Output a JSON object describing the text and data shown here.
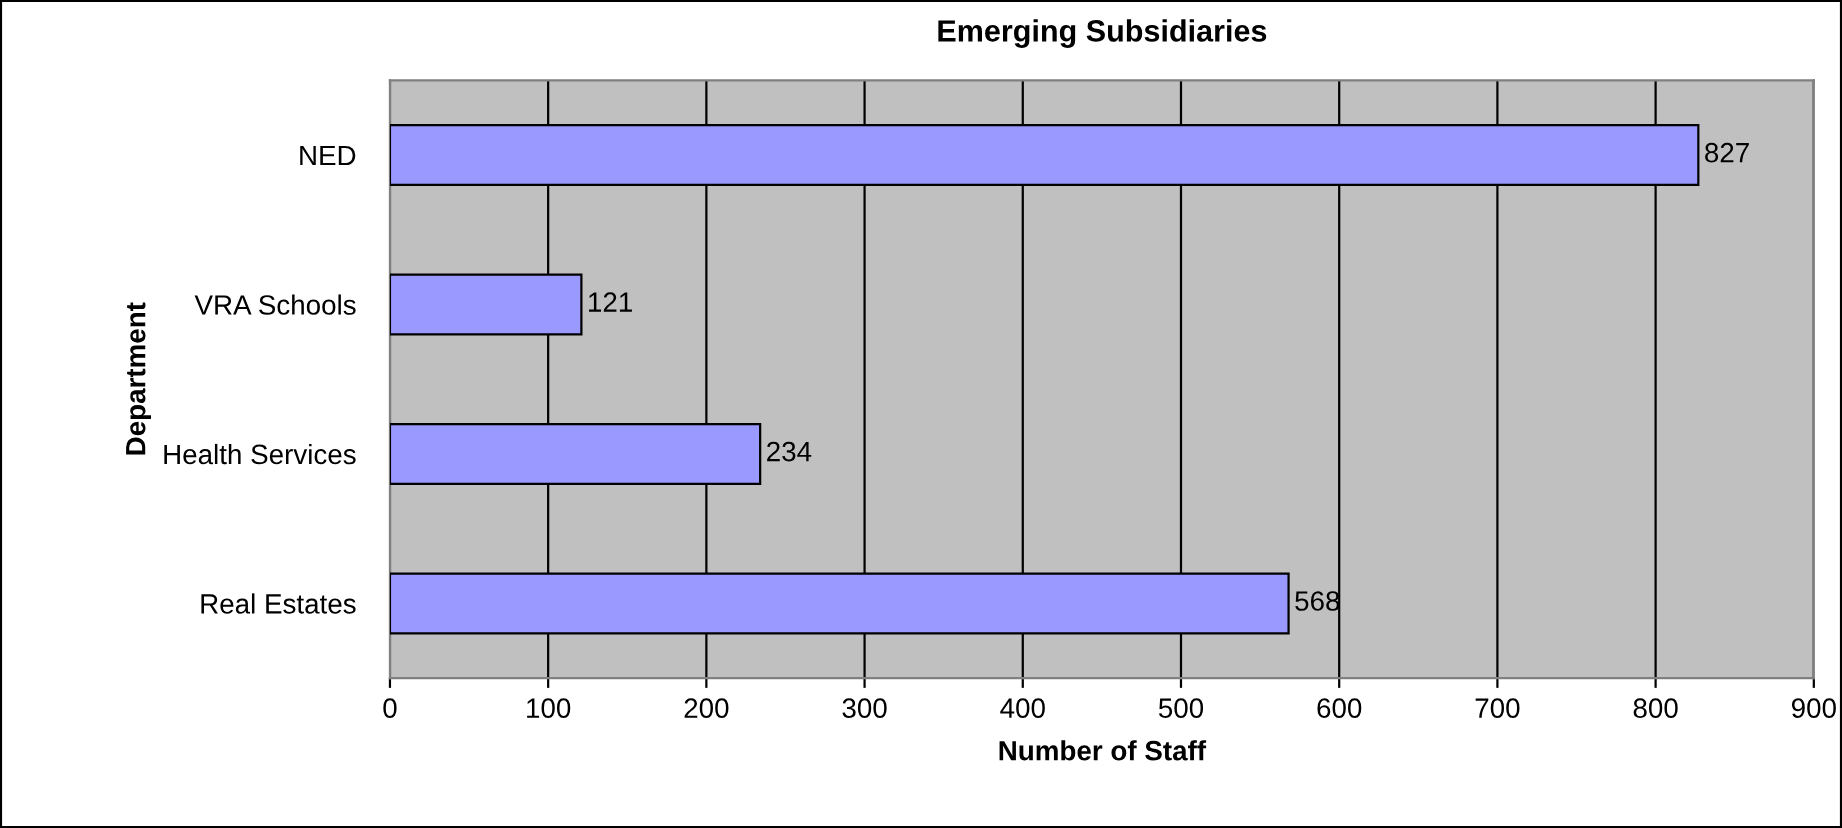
{
  "chart_data": {
    "type": "bar",
    "orientation": "horizontal",
    "title": "Emerging Subsidiaries",
    "xlabel": "Number of Staff",
    "ylabel": "Department",
    "categories": [
      "NED",
      "VRA Schools",
      "Health Services",
      "Real Estates"
    ],
    "values": [
      827,
      121,
      234,
      568
    ],
    "color": "#9999ff",
    "xlim": [
      0,
      900
    ],
    "xticks": [
      0,
      100,
      200,
      300,
      400,
      500,
      600,
      700,
      800,
      900
    ],
    "grid": "x",
    "data_labels": true
  }
}
